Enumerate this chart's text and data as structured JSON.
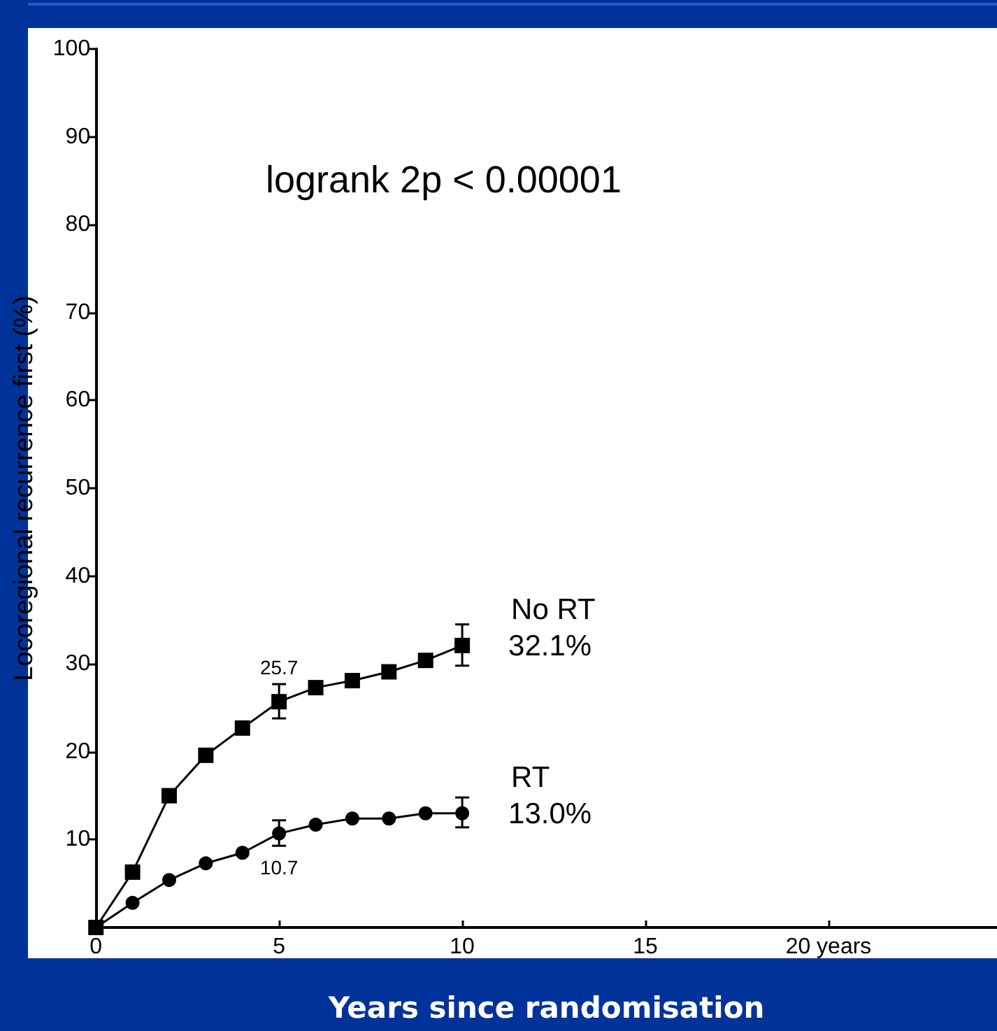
{
  "chart_data": {
    "type": "line",
    "xlabel": "Years since randomisation",
    "ylabel": "Locoregional recurrence first (%)",
    "x": [
      0,
      1,
      2,
      3,
      4,
      5,
      6,
      7,
      8,
      9,
      10
    ],
    "series": [
      {
        "name": "No RT",
        "color": "#000000",
        "marker": "square",
        "values": [
          0,
          6.3,
          15.0,
          19.6,
          22.7,
          25.7,
          27.3,
          28.1,
          29.1,
          30.4,
          32.1
        ],
        "errors": [
          null,
          null,
          null,
          null,
          null,
          [
            23.8,
            27.7
          ],
          null,
          null,
          null,
          null,
          [
            29.8,
            34.5
          ]
        ],
        "value_labels": [
          null,
          null,
          null,
          null,
          null,
          "25.7",
          null,
          null,
          null,
          null,
          null
        ]
      },
      {
        "name": "RT",
        "color": "#000000",
        "marker": "circle",
        "values": [
          0,
          2.8,
          5.4,
          7.3,
          8.5,
          10.7,
          11.7,
          12.4,
          12.4,
          13.0,
          13.0
        ],
        "errors": [
          null,
          null,
          null,
          null,
          null,
          [
            9.3,
            12.2
          ],
          null,
          null,
          null,
          null,
          [
            11.4,
            14.8
          ]
        ],
        "value_labels": [
          null,
          null,
          null,
          null,
          null,
          "10.7",
          null,
          null,
          null,
          null,
          null
        ]
      }
    ],
    "annotations": [
      "logrank 2p < 0.00001",
      {
        "text": "32.1%",
        "x": 10,
        "y": 32.1
      },
      {
        "text": "13.0%",
        "x": 10,
        "y": 13.0
      }
    ],
    "xlim": [
      0,
      24.6
    ],
    "xticks": [
      0,
      5,
      10,
      15,
      {
        "value": 20,
        "label": "20 years"
      }
    ],
    "ylim": [
      0,
      100
    ],
    "yticks": [
      10,
      20,
      30,
      40,
      50,
      60,
      70,
      80,
      90,
      100
    ],
    "line_style": "solid",
    "grid": false,
    "legend": false
  }
}
